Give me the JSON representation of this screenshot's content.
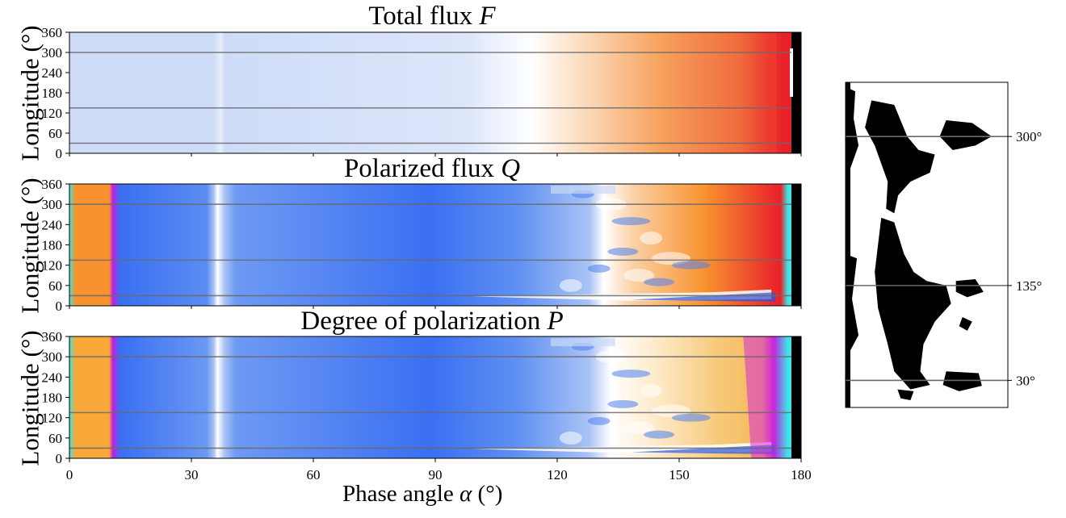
{
  "chart_data": [
    {
      "type": "heatmap",
      "title": "Total flux F",
      "title_text": "Total flux ",
      "title_symbol": "F",
      "ylabel": "Longitude (°)",
      "yticks": [
        0,
        60,
        120,
        180,
        240,
        300,
        360
      ],
      "ylim": [
        0,
        360
      ],
      "xlim": [
        0,
        180
      ],
      "hlines": [
        30,
        135,
        300
      ],
      "colors": [
        "#cfdcf8",
        "#ffffff",
        "#fbd7b5",
        "#f7a15c",
        "#f06a3c",
        "#e8202a",
        "#000000"
      ]
    },
    {
      "type": "heatmap",
      "title": "Polarized flux Q",
      "title_text": "Polarized flux ",
      "title_symbol": "Q",
      "ylabel": "Longitude (°)",
      "yticks": [
        0,
        60,
        120,
        180,
        240,
        300,
        360
      ],
      "ylim": [
        0,
        360
      ],
      "xlim": [
        0,
        180
      ],
      "hlines": [
        30,
        135,
        300
      ],
      "colors": [
        "#3a6ff2",
        "#a9c3f5",
        "#ffffff",
        "#f8922f",
        "#e8202a",
        "#c01ee0",
        "#3de6e6"
      ]
    },
    {
      "type": "heatmap",
      "title": "Degree of polarization P",
      "title_text": "Degree of polarization ",
      "title_symbol": "P",
      "ylabel": "Longitude (°)",
      "yticks": [
        0,
        60,
        120,
        180,
        240,
        300,
        360
      ],
      "ylim": [
        0,
        360
      ],
      "xlim": [
        0,
        180
      ],
      "hlines": [
        30,
        135,
        300
      ],
      "xlabel": "Phase angle α (°)",
      "xlabel_text": "Phase angle ",
      "xlabel_symbol": "α",
      "xlabel_unit": " (°)",
      "xticks": [
        0,
        30,
        60,
        90,
        120,
        150,
        180
      ],
      "colors": [
        "#3a6ff2",
        "#a9c3f5",
        "#ffffff",
        "#f8a838",
        "#f6c979",
        "#c01ee0",
        "#3de6e6"
      ]
    },
    {
      "type": "map",
      "description_labels": [
        "300°",
        "135°",
        "30°"
      ],
      "hlines": [
        30,
        135,
        300
      ],
      "colors": [
        "#000000",
        "#ffffff"
      ]
    }
  ]
}
